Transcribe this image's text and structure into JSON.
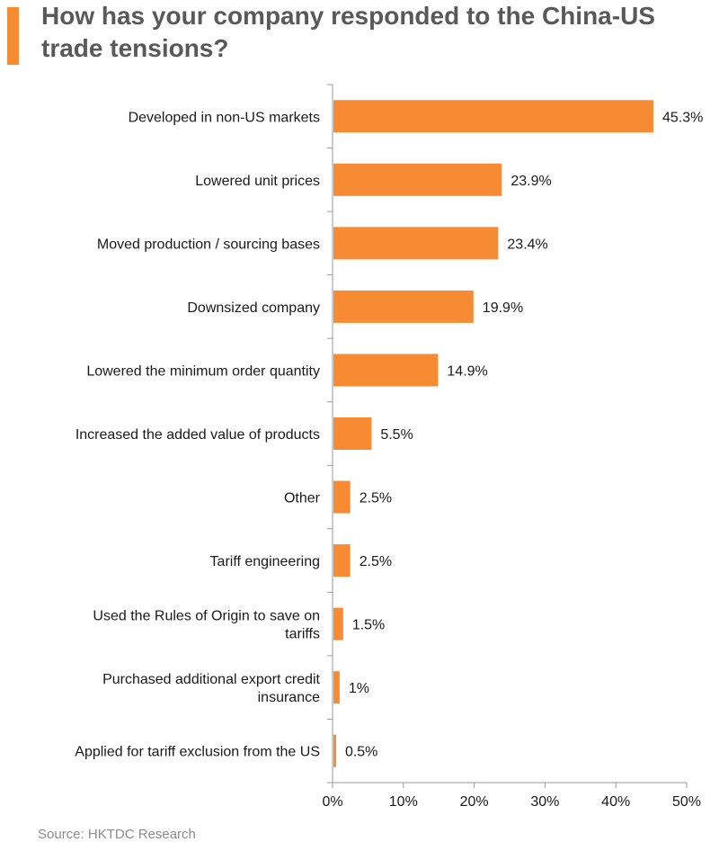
{
  "title": "How has your company responded to the China-US trade tensions?",
  "source": "Source: HKTDC Research",
  "colors": {
    "bar": "#F68B33",
    "accent": "#F68B33",
    "axis": "#9a9a9a"
  },
  "chart_data": {
    "type": "bar",
    "orientation": "horizontal",
    "categories": [
      "Developed in non-US markets",
      "Lowered unit prices",
      "Moved production / sourcing bases",
      "Downsized company",
      "Lowered the minimum order quantity",
      "Increased the added value of products",
      "Other",
      "Tariff engineering",
      "Used the Rules of Origin to save on tariffs",
      "Purchased additional export credit insurance",
      "Applied for tariff exclusion from the US"
    ],
    "category_lines": [
      [
        "Developed in non-US markets"
      ],
      [
        "Lowered unit prices"
      ],
      [
        "Moved production / sourcing bases"
      ],
      [
        "Downsized company"
      ],
      [
        "Lowered the minimum order quantity"
      ],
      [
        "Increased the added value of products"
      ],
      [
        "Other"
      ],
      [
        "Tariff engineering"
      ],
      [
        "Used the Rules of Origin to save on",
        "tariffs"
      ],
      [
        "Purchased additional export credit",
        "insurance"
      ],
      [
        "Applied for tariff exclusion from the US"
      ]
    ],
    "values": [
      45.3,
      23.9,
      23.4,
      19.9,
      14.9,
      5.5,
      2.5,
      2.5,
      1.5,
      1,
      0.5
    ],
    "value_labels": [
      "45.3%",
      "23.9%",
      "23.4%",
      "19.9%",
      "14.9%",
      "5.5%",
      "2.5%",
      "2.5%",
      "1.5%",
      "1%",
      "0.5%"
    ],
    "xlim": [
      0,
      50
    ],
    "xticks": [
      0,
      10,
      20,
      30,
      40,
      50
    ],
    "xtick_labels": [
      "0%",
      "10%",
      "20%",
      "30%",
      "40%",
      "50%"
    ],
    "grid": false,
    "legend": "none",
    "title": "How has your company responded to the China-US trade tensions?",
    "xlabel": "",
    "ylabel": ""
  }
}
